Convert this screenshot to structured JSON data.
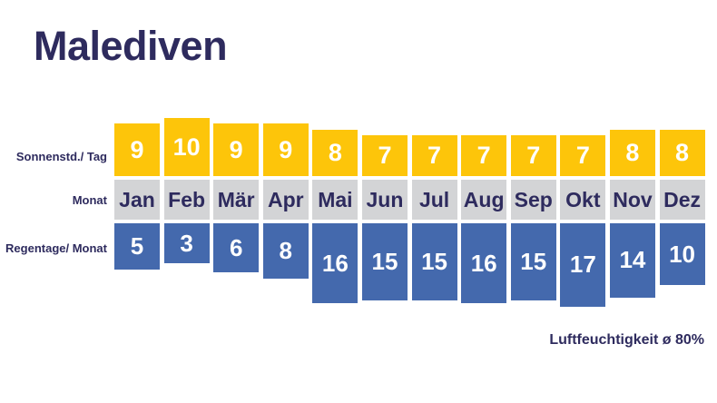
{
  "title": "Malediven",
  "row_labels": {
    "sun": "Sonnenstd./ Tag",
    "month": "Monat",
    "rain": "Regentage/ Monat"
  },
  "footer": {
    "humidity": "Luftfeuchtigkeit ø 80%"
  },
  "colors": {
    "navy": "#2e2b5e",
    "yellow": "#fdc50a",
    "gray": "#d3d4d6",
    "blue": "#4469ad"
  },
  "chart_data": {
    "type": "bar",
    "title": "Malediven",
    "categories": [
      "Jan",
      "Feb",
      "Mär",
      "Apr",
      "Mai",
      "Jun",
      "Jul",
      "Aug",
      "Sep",
      "Okt",
      "Nov",
      "Dez"
    ],
    "series": [
      {
        "name": "Sonnenstd./ Tag",
        "direction": "up",
        "values": [
          9,
          10,
          9,
          9,
          8,
          7,
          7,
          7,
          7,
          7,
          8,
          8
        ]
      },
      {
        "name": "Regentage/ Monat",
        "direction": "down",
        "values": [
          5,
          3,
          6,
          8,
          16,
          15,
          15,
          16,
          15,
          17,
          14,
          10
        ]
      }
    ],
    "annotation": "Luftfeuchtigkeit ø 80%",
    "legend_position": "none",
    "grid": false
  }
}
